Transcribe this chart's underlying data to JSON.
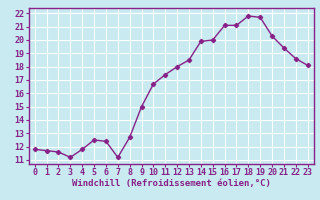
{
  "x": [
    0,
    1,
    2,
    3,
    4,
    5,
    6,
    7,
    8,
    9,
    10,
    11,
    12,
    13,
    14,
    15,
    16,
    17,
    18,
    19,
    20,
    21,
    22,
    23
  ],
  "y": [
    11.8,
    11.7,
    11.6,
    11.2,
    11.8,
    12.5,
    12.4,
    11.2,
    12.7,
    15.0,
    16.7,
    17.4,
    18.0,
    18.5,
    19.9,
    20.0,
    21.1,
    21.1,
    21.8,
    21.7,
    20.3,
    19.4,
    18.6,
    18.1
  ],
  "line_color": "#882288",
  "marker": "D",
  "markersize": 2.2,
  "linewidth": 1.0,
  "bg_color": "#c8eaf0",
  "grid_color": "#ffffff",
  "tick_color": "#882288",
  "axis_bg": "#c8eaf0",
  "xlabel": "Windchill (Refroidissement éolien,°C)",
  "ylabel_ticks": [
    11,
    12,
    13,
    14,
    15,
    16,
    17,
    18,
    19,
    20,
    21,
    22
  ],
  "xlim": [
    -0.5,
    23.5
  ],
  "ylim": [
    10.7,
    22.4
  ],
  "label_fontsize": 6.5,
  "tick_fontsize": 6.0
}
